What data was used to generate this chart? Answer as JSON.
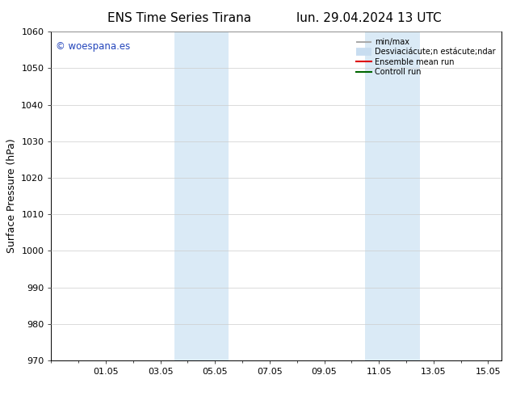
{
  "title_left": "ENS Time Series Tirana",
  "title_right": "lun. 29.04.2024 13 UTC",
  "ylabel": "Surface Pressure (hPa)",
  "ylim": [
    970,
    1060
  ],
  "yticks": [
    970,
    980,
    990,
    1000,
    1010,
    1020,
    1030,
    1040,
    1050,
    1060
  ],
  "xtick_labels": [
    "01.05",
    "03.05",
    "05.05",
    "07.05",
    "09.05",
    "11.05",
    "13.05",
    "15.05"
  ],
  "xtick_positions": [
    2,
    4,
    6,
    8,
    10,
    12,
    14,
    16
  ],
  "xlim": [
    0,
    16.5
  ],
  "shade_regions": [
    {
      "x_start": 4.5,
      "x_end": 5.5
    },
    {
      "x_start": 5.5,
      "x_end": 6.5
    },
    {
      "x_start": 11.5,
      "x_end": 12.5
    },
    {
      "x_start": 12.5,
      "x_end": 13.5
    }
  ],
  "shade_color": "#daeaf6",
  "watermark_text": "© woespana.es",
  "watermark_color": "#2244bb",
  "bg_color": "#ffffff",
  "grid_color": "#cccccc",
  "legend_min_max_color": "#aaaaaa",
  "legend_std_color": "#c8ddf0",
  "legend_mean_color": "#dd0000",
  "legend_control_color": "#006600",
  "title_fontsize": 11,
  "tick_fontsize": 8,
  "ylabel_fontsize": 9
}
